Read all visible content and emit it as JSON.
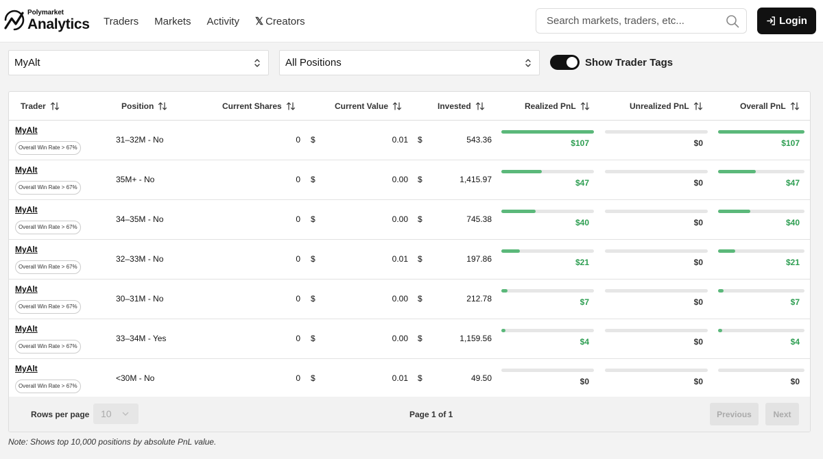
{
  "header": {
    "logo_small": "Polymarket",
    "logo_big": "Analytics",
    "nav": [
      "Traders",
      "Markets",
      "Activity"
    ],
    "creators_label": "Creators",
    "search_placeholder": "Search markets, traders, etc...",
    "login_label": "Login"
  },
  "filters": {
    "trader_select": "MyAlt",
    "positions_select": "All Positions",
    "toggle_label": "Show Trader Tags",
    "toggle_on": true
  },
  "table": {
    "columns": [
      "Trader",
      "Position",
      "Current Shares",
      "Current Value",
      "Invested",
      "Realized PnL",
      "Unrealized PnL",
      "Overall PnL"
    ],
    "rows": [
      {
        "trader": "MyAlt",
        "tag": "Overall Win Rate > 67%",
        "position": "31–32M - No",
        "shares": "0",
        "value": "0.01",
        "invested": "543.36",
        "realized": "$107",
        "unrealized": "$0",
        "overall": "$107",
        "realized_level": 1.0,
        "overall_level": 1.0
      },
      {
        "trader": "MyAlt",
        "tag": "Overall Win Rate > 67%",
        "position": "35M+ - No",
        "shares": "0",
        "value": "0.00",
        "invested": "1,415.97",
        "realized": "$47",
        "unrealized": "$0",
        "overall": "$47",
        "realized_level": 0.44,
        "overall_level": 0.44
      },
      {
        "trader": "MyAlt",
        "tag": "Overall Win Rate > 67%",
        "position": "34–35M - No",
        "shares": "0",
        "value": "0.00",
        "invested": "745.38",
        "realized": "$40",
        "unrealized": "$0",
        "overall": "$40",
        "realized_level": 0.37,
        "overall_level": 0.37
      },
      {
        "trader": "MyAlt",
        "tag": "Overall Win Rate > 67%",
        "position": "32–33M - No",
        "shares": "0",
        "value": "0.01",
        "invested": "197.86",
        "realized": "$21",
        "unrealized": "$0",
        "overall": "$21",
        "realized_level": 0.2,
        "overall_level": 0.2
      },
      {
        "trader": "MyAlt",
        "tag": "Overall Win Rate > 67%",
        "position": "30–31M - No",
        "shares": "0",
        "value": "0.00",
        "invested": "212.78",
        "realized": "$7",
        "unrealized": "$0",
        "overall": "$7",
        "realized_level": 0.065,
        "overall_level": 0.065
      },
      {
        "trader": "MyAlt",
        "tag": "Overall Win Rate > 67%",
        "position": "33–34M - Yes",
        "shares": "0",
        "value": "0.00",
        "invested": "1,159.56",
        "realized": "$4",
        "unrealized": "$0",
        "overall": "$4",
        "realized_level": 0.037,
        "overall_level": 0.037
      },
      {
        "trader": "MyAlt",
        "tag": "Overall Win Rate > 67%",
        "position": "<30M - No",
        "shares": "0",
        "value": "0.01",
        "invested": "49.50",
        "realized": "$0",
        "unrealized": "$0",
        "overall": "$0",
        "realized_level": 0,
        "overall_level": 0
      }
    ],
    "currency_symbol": "$"
  },
  "footer": {
    "rows_per_page_label": "Rows per page",
    "rows_per_page_value": "10",
    "page_info": "Page 1 of 1",
    "previous_label": "Previous",
    "next_label": "Next"
  },
  "note": "Note: Shows top 10,000 positions by absolute PnL value.",
  "colors": {
    "accent": "#111111",
    "pnl_positive": "#2e9e52",
    "bar_fill": "#5bb87a",
    "bar_track": "#e6e6e6"
  }
}
